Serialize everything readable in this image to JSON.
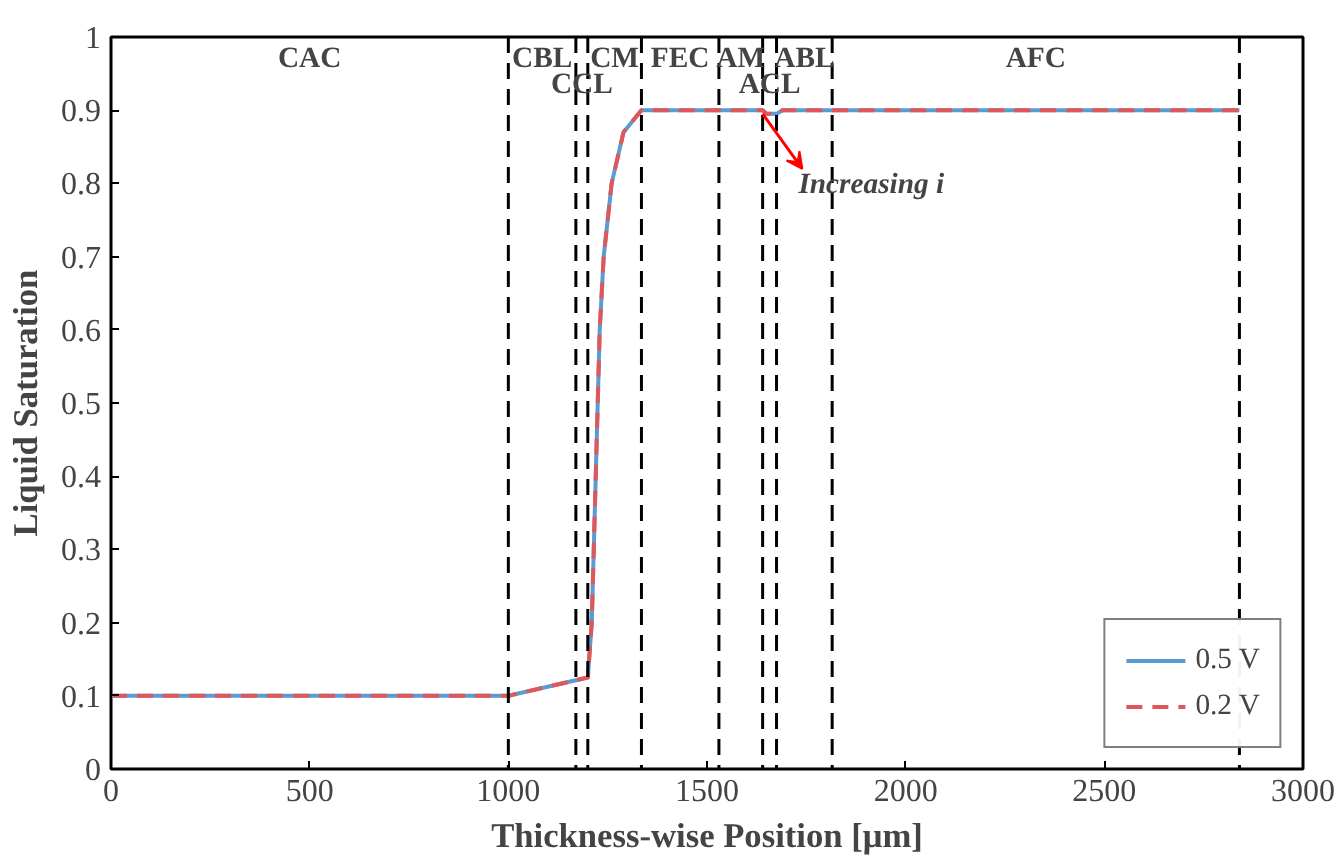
{
  "chart_data": {
    "type": "line",
    "xlabel": "Thickness-wise Position [μm]",
    "ylabel": "Liquid Saturation",
    "xlim": [
      0,
      3000
    ],
    "xticks": [
      0,
      500,
      1000,
      1500,
      2000,
      2500,
      3000
    ],
    "ylim": [
      0,
      1
    ],
    "yticks": [
      0,
      0.1,
      0.2,
      0.3,
      0.4,
      0.5,
      0.6,
      0.7,
      0.8,
      0.9,
      1
    ],
    "grid": false,
    "legend": "bottom right",
    "marker": "none",
    "series": [
      {
        "name": "0.5 V",
        "color": "#5b9bd5",
        "line_style": "solid",
        "x": [
          0,
          1000,
          1200,
          1210,
          1220,
          1230,
          1240,
          1260,
          1290,
          1335,
          1640,
          1650,
          1675,
          1690,
          2840
        ],
        "values": [
          0.1,
          0.1,
          0.125,
          0.2,
          0.4,
          0.6,
          0.7,
          0.8,
          0.87,
          0.9,
          0.9,
          0.895,
          0.895,
          0.9,
          0.9
        ]
      },
      {
        "name": "0.2 V",
        "color": "#e15759",
        "line_style": "dashed",
        "x": [
          0,
          1000,
          1200,
          1210,
          1220,
          1230,
          1240,
          1260,
          1290,
          1335,
          1640,
          1650,
          1675,
          1690,
          2840
        ],
        "values": [
          0.1,
          0.1,
          0.125,
          0.2,
          0.4,
          0.6,
          0.7,
          0.8,
          0.87,
          0.9,
          0.9,
          0.895,
          0.895,
          0.9,
          0.9
        ]
      }
    ],
    "ref_lines": [
      {
        "axis": "x",
        "value": 1000,
        "color": "#000000",
        "line_style": "dashed"
      },
      {
        "axis": "x",
        "value": 1170,
        "color": "#000000",
        "line_style": "dashed"
      },
      {
        "axis": "x",
        "value": 1200,
        "color": "#000000",
        "line_style": "dashed"
      },
      {
        "axis": "x",
        "value": 1335,
        "color": "#000000",
        "line_style": "dashed"
      },
      {
        "axis": "x",
        "value": 1530,
        "color": "#000000",
        "line_style": "dashed"
      },
      {
        "axis": "x",
        "value": 1640,
        "color": "#000000",
        "line_style": "dashed"
      },
      {
        "axis": "x",
        "value": 1675,
        "color": "#000000",
        "line_style": "dashed"
      },
      {
        "axis": "x",
        "value": 1815,
        "color": "#000000",
        "line_style": "dashed"
      },
      {
        "axis": "x",
        "value": 2840,
        "color": "#000000",
        "line_style": "dashed"
      }
    ],
    "annotations": [
      "CAC",
      "CBL",
      "CCL",
      "CM",
      "FEC",
      "AM",
      "ACL",
      "ABL",
      "AFC",
      {
        "text": "Increasing i",
        "x": 1700,
        "y": 0.9
      }
    ]
  }
}
